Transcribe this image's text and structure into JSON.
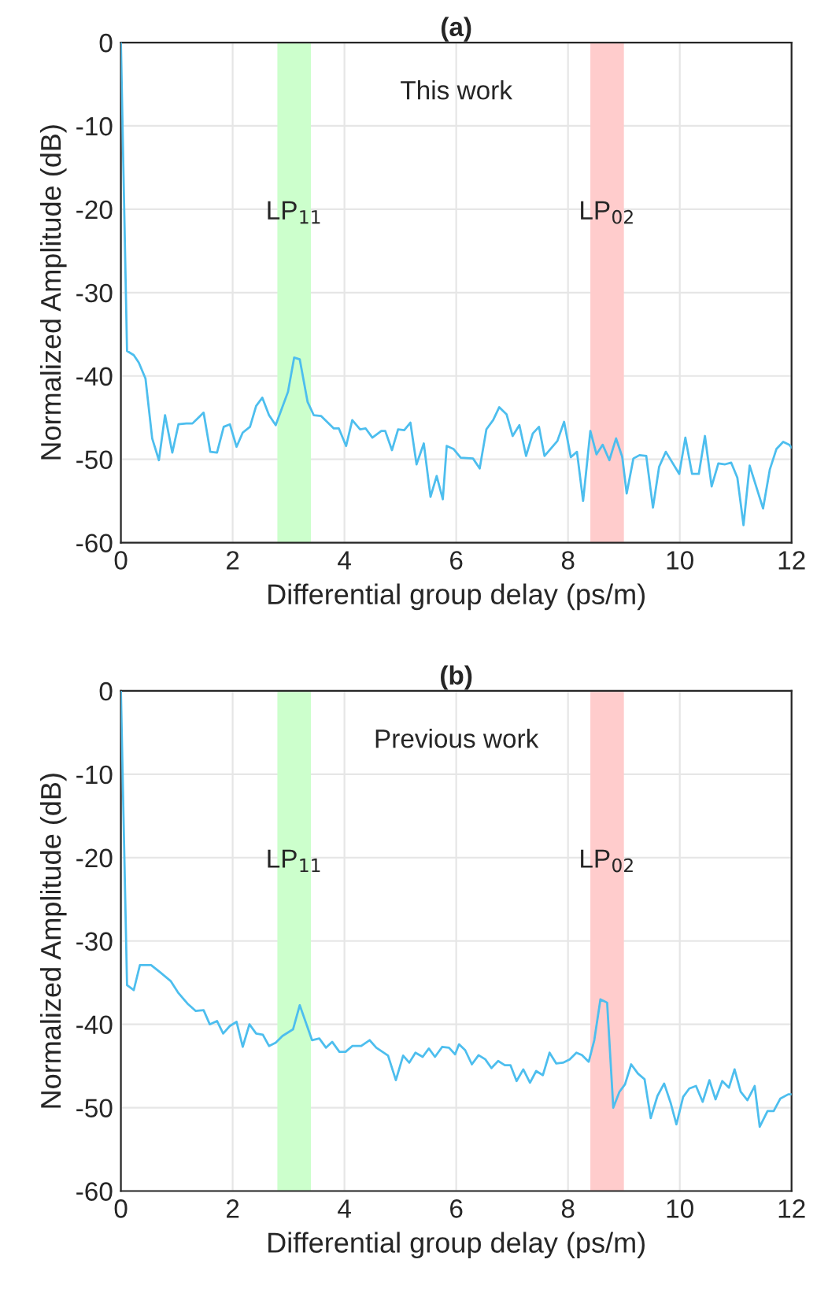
{
  "chart_data": [
    {
      "type": "line",
      "title": "(a)",
      "xlabel": "Differential group delay (ps/m)",
      "ylabel": "Normalized Amplitude (dB)",
      "xlim": [
        0,
        12
      ],
      "ylim": [
        -60,
        0
      ],
      "xticks": [
        0,
        2,
        4,
        6,
        8,
        10,
        12
      ],
      "yticks": [
        -60,
        -50,
        -40,
        -30,
        -20,
        -10,
        0
      ],
      "grid": true,
      "annotations": [
        "This work"
      ],
      "bands": [
        {
          "axis": "x",
          "from": 2.8,
          "to": 3.4,
          "label": "LP$_{11}$",
          "color": "#ccffcc"
        },
        {
          "axis": "x",
          "from": 8.4,
          "to": 9.0,
          "label": "LP$_{02}$",
          "color": "#ffcccc"
        }
      ],
      "series": [
        {
          "color": "#4dbeee",
          "x": [
            0,
            0.11,
            0.23,
            0.32,
            0.44,
            0.56,
            0.68,
            0.79,
            0.92,
            1.03,
            1.17,
            1.28,
            1.48,
            1.6,
            1.72,
            1.84,
            1.95,
            2.07,
            2.18,
            2.31,
            2.42,
            2.53,
            2.65,
            2.77,
            2.99,
            3.1,
            3.2,
            3.34,
            3.45,
            3.58,
            3.81,
            3.9,
            4.03,
            4.14,
            4.28,
            4.38,
            4.5,
            4.66,
            4.73,
            4.85,
            4.96,
            5.07,
            5.18,
            5.29,
            5.42,
            5.54,
            5.65,
            5.76,
            5.83,
            5.95,
            6.08,
            6.3,
            6.42,
            6.54,
            6.66,
            6.77,
            6.9,
            7.01,
            7.13,
            7.25,
            7.37,
            7.48,
            7.58,
            7.81,
            7.93,
            8.05,
            8.16,
            8.27,
            8.4,
            8.51,
            8.62,
            8.74,
            8.86,
            8.97,
            9.05,
            9.17,
            9.28,
            9.4,
            9.52,
            9.63,
            9.75,
            9.99,
            10.1,
            10.22,
            10.34,
            10.45,
            10.57,
            10.69,
            10.81,
            10.92,
            11.03,
            11.14,
            11.25,
            11.49,
            11.61,
            11.73,
            11.85,
            11.96,
            12
          ],
          "values": [
            0,
            -37,
            -37.5,
            -38.4,
            -40.3,
            -47.5,
            -50.1,
            -44.7,
            -49.2,
            -45.8,
            -45.7,
            -45.7,
            -44.4,
            -49.1,
            -49.2,
            -46.1,
            -45.8,
            -48.5,
            -46.8,
            -46.1,
            -43.6,
            -42.6,
            -44.7,
            -45.9,
            -41.9,
            -37.8,
            -38,
            -43.1,
            -44.7,
            -44.8,
            -46.3,
            -46.3,
            -48.4,
            -45.3,
            -46.4,
            -46.3,
            -47.4,
            -46.6,
            -46.6,
            -48.9,
            -46.4,
            -46.5,
            -45.6,
            -50.6,
            -48.1,
            -54.5,
            -52,
            -54.8,
            -48.4,
            -48.75,
            -49.8,
            -49.9,
            -51.1,
            -46.4,
            -45.3,
            -43.75,
            -44.6,
            -47.2,
            -45.9,
            -49.6,
            -46.9,
            -46.1,
            -49.6,
            -47.8,
            -45.5,
            -49.75,
            -49.1,
            -55,
            -46.6,
            -49.4,
            -48.25,
            -50.1,
            -47.5,
            -49.7,
            -54.1,
            -49.9,
            -49.5,
            -49.6,
            -55.8,
            -50.9,
            -49.1,
            -51.75,
            -47.4,
            -51.75,
            -51.75,
            -47.2,
            -53.25,
            -50.5,
            -50.6,
            -50.4,
            -52.2,
            -57.9,
            -50.75,
            -55.9,
            -51.25,
            -48.75,
            -47.9,
            -48.25,
            -48.6
          ]
        }
      ]
    },
    {
      "type": "line",
      "title": "(b)",
      "xlabel": "Differential group delay (ps/m)",
      "ylabel": "Normalized Amplitude (dB)",
      "xlim": [
        0,
        12
      ],
      "ylim": [
        -60,
        0
      ],
      "xticks": [
        0,
        2,
        4,
        6,
        8,
        10,
        12
      ],
      "yticks": [
        -60,
        -50,
        -40,
        -30,
        -20,
        -10,
        0
      ],
      "grid": true,
      "annotations": [
        "Previous work"
      ],
      "bands": [
        {
          "axis": "x",
          "from": 2.8,
          "to": 3.4,
          "label": "LP$_{11}$",
          "color": "#ccffcc"
        },
        {
          "axis": "x",
          "from": 8.4,
          "to": 9.0,
          "label": "LP$_{02}$",
          "color": "#ffcccc"
        }
      ],
      "series": [
        {
          "color": "#4dbeee",
          "x": [
            0,
            0.11,
            0.23,
            0.34,
            0.54,
            0.7,
            0.89,
            1.03,
            1.19,
            1.34,
            1.48,
            1.59,
            1.72,
            1.83,
            1.95,
            2.07,
            2.18,
            2.3,
            2.42,
            2.54,
            2.65,
            2.77,
            2.89,
            3.08,
            3.2,
            3.42,
            3.55,
            3.67,
            3.78,
            3.91,
            4.02,
            4.14,
            4.3,
            4.45,
            4.57,
            4.78,
            4.92,
            5.05,
            5.16,
            5.27,
            5.4,
            5.51,
            5.62,
            5.75,
            5.87,
            5.98,
            6.05,
            6.16,
            6.28,
            6.4,
            6.52,
            6.63,
            6.75,
            6.87,
            6.97,
            7.08,
            7.2,
            7.32,
            7.43,
            7.55,
            7.67,
            7.79,
            7.91,
            8.03,
            8.15,
            8.25,
            8.37,
            8.47,
            8.58,
            8.7,
            8.81,
            8.92,
            9.02,
            9.13,
            9.25,
            9.37,
            9.48,
            9.6,
            9.72,
            9.84,
            9.94,
            10.06,
            10.17,
            10.29,
            10.41,
            10.53,
            10.64,
            10.76,
            10.88,
            10.98,
            11.09,
            11.21,
            11.34,
            11.43,
            11.57,
            11.68,
            11.8,
            11.94,
            12
          ],
          "values": [
            0,
            -35.3,
            -35.9,
            -32.9,
            -32.9,
            -33.75,
            -34.8,
            -36.25,
            -37.5,
            -38.4,
            -38.3,
            -40,
            -39.6,
            -41.1,
            -40.2,
            -39.7,
            -42.7,
            -40,
            -41.1,
            -41.25,
            -42.6,
            -42.2,
            -41.4,
            -40.6,
            -37.7,
            -41.9,
            -41.7,
            -42.8,
            -42.1,
            -43.3,
            -43.3,
            -42.6,
            -42.6,
            -41.9,
            -42.8,
            -43.75,
            -46.7,
            -43.75,
            -44.6,
            -43.4,
            -43.9,
            -42.9,
            -43.9,
            -42.7,
            -42.8,
            -43.6,
            -42.4,
            -43.1,
            -44.8,
            -43.7,
            -44.2,
            -45.25,
            -44.4,
            -44.9,
            -44.9,
            -46.8,
            -45.4,
            -47,
            -45.6,
            -46.1,
            -43.4,
            -44.7,
            -44.6,
            -44.2,
            -43.4,
            -43.7,
            -44.5,
            -41.9,
            -37,
            -37.4,
            -50,
            -48.1,
            -47.2,
            -44.8,
            -45.9,
            -46.6,
            -51.25,
            -48.6,
            -47.1,
            -49.5,
            -52,
            -48.7,
            -47.7,
            -47.4,
            -49.3,
            -46.7,
            -49,
            -46.8,
            -47.6,
            -45.4,
            -48.1,
            -49.1,
            -47.4,
            -52.3,
            -50.4,
            -50.4,
            -48.9,
            -48.4,
            -48.4
          ]
        }
      ]
    }
  ]
}
